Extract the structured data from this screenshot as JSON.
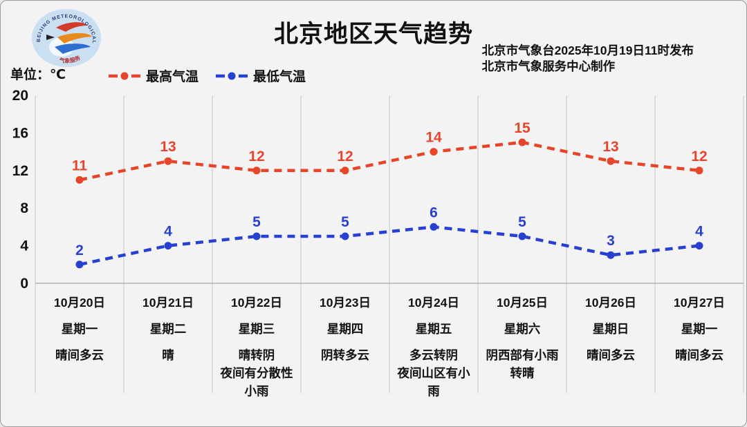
{
  "header": {
    "title": "北京地区天气趋势",
    "publish_line1": "北京市气象台2025年10月19日11时发布",
    "publish_line2": "北京市气象服务中心制作",
    "logo_text_ring": "BEIJING METEOROLOGICAL SERVICE",
    "logo_text_bottom": "气象服务"
  },
  "unit_label": "单位：℃",
  "colors": {
    "background": "#f2f3f2",
    "grid": "#c7c7c7",
    "axis": "#b3b3b3",
    "text": "#111111",
    "series_max": "#e6452c",
    "series_min": "#2840cf"
  },
  "chart_data": {
    "type": "line",
    "title": "北京地区天气趋势",
    "unit": "℃",
    "ylim": [
      0,
      20
    ],
    "yticks": [
      0,
      4,
      8,
      12,
      16,
      20
    ],
    "grid": "vertical-column-separators",
    "legend_position": "top-left",
    "line_style": "dashed-with-dot-markers",
    "categories": [
      {
        "date": "10月20日",
        "weekday": "星期一",
        "weather": [
          "晴间多云"
        ]
      },
      {
        "date": "10月21日",
        "weekday": "星期二",
        "weather": [
          "晴"
        ]
      },
      {
        "date": "10月22日",
        "weekday": "星期三",
        "weather": [
          "晴转阴",
          "夜间有分散性",
          "小雨"
        ]
      },
      {
        "date": "10月23日",
        "weekday": "星期四",
        "weather": [
          "阴转多云"
        ]
      },
      {
        "date": "10月24日",
        "weekday": "星期五",
        "weather": [
          "多云转阴",
          "夜间山区有小",
          "雨"
        ]
      },
      {
        "date": "10月25日",
        "weekday": "星期六",
        "weather": [
          "阴西部有小雨",
          "转晴"
        ]
      },
      {
        "date": "10月26日",
        "weekday": "星期日",
        "weather": [
          "晴间多云"
        ]
      },
      {
        "date": "10月27日",
        "weekday": "星期一",
        "weather": [
          "晴间多云"
        ]
      }
    ],
    "series": [
      {
        "name": "最高气温",
        "color": "#e6452c",
        "values": [
          11,
          13,
          12,
          12,
          14,
          15,
          13,
          12
        ]
      },
      {
        "name": "最低气温",
        "color": "#2840cf",
        "values": [
          2,
          4,
          5,
          5,
          6,
          5,
          3,
          4
        ]
      }
    ]
  }
}
